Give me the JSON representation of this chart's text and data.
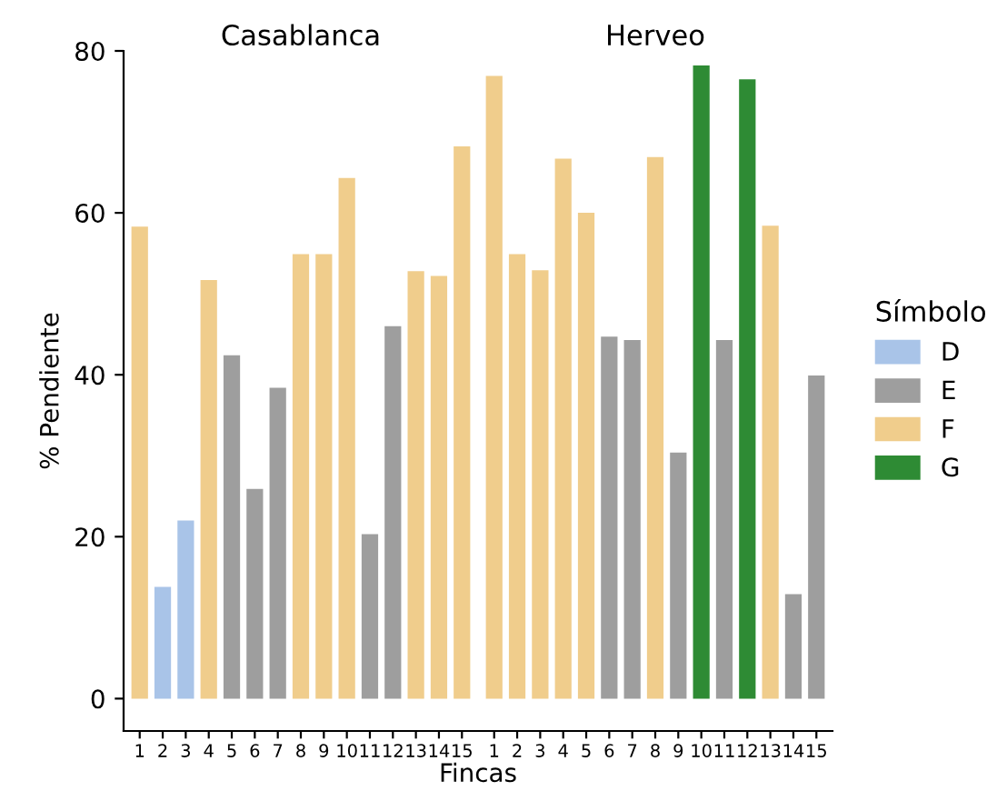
{
  "chart_data": [
    {
      "type": "bar",
      "title": "Casablanca",
      "ylabel": "% Pendiente",
      "xlabel": "Fincas",
      "categories": [
        "1",
        "2",
        "3",
        "4",
        "5",
        "6",
        "7",
        "8",
        "9",
        "10",
        "11",
        "12",
        "13",
        "14",
        "15"
      ],
      "series": [
        {
          "name": "D",
          "color": "#a9c4e8",
          "values": [
            null,
            13.8,
            22.0,
            null,
            null,
            null,
            null,
            null,
            null,
            null,
            null,
            null,
            null,
            null,
            null
          ]
        },
        {
          "name": "E",
          "color": "#9e9e9e",
          "values": [
            null,
            null,
            null,
            null,
            42.4,
            25.9,
            38.4,
            null,
            null,
            null,
            20.3,
            46.0,
            null,
            null,
            null
          ]
        },
        {
          "name": "F",
          "color": "#f0cd8c",
          "values": [
            58.3,
            null,
            null,
            51.7,
            null,
            null,
            null,
            54.9,
            54.9,
            64.3,
            null,
            null,
            52.8,
            52.2,
            68.2
          ]
        },
        {
          "name": "G",
          "color": "#2e8b34",
          "values": [
            null,
            null,
            null,
            null,
            null,
            null,
            null,
            null,
            null,
            null,
            null,
            null,
            null,
            null,
            null
          ]
        }
      ],
      "ylim": [
        -4,
        80
      ],
      "yticks": [
        0,
        20,
        40,
        60,
        80
      ],
      "grid": false,
      "legend": "right",
      "legend_title": "Símbolo"
    },
    {
      "type": "bar",
      "title": "Herveo",
      "categories": [
        "1",
        "2",
        "3",
        "4",
        "5",
        "6",
        "7",
        "8",
        "9",
        "10",
        "11",
        "12",
        "13",
        "14",
        "15"
      ],
      "series": [
        {
          "color": "#9e9e9e",
          "values": [
            null,
            null,
            null,
            null,
            null,
            44.7,
            44.3,
            null,
            30.4,
            null,
            44.3,
            null,
            null,
            12.9,
            39.9
          ]
        },
        {
          "color": "#f0cd8c",
          "values": [
            76.9,
            54.9,
            52.9,
            66.7,
            60.0,
            null,
            null,
            66.9,
            null,
            null,
            null,
            null,
            58.4,
            null,
            null
          ]
        },
        {
          "color": "#2e8b34",
          "values": [
            null,
            null,
            null,
            null,
            null,
            null,
            null,
            null,
            null,
            78.2,
            null,
            76.5,
            null,
            null,
            null
          ]
        }
      ],
      "ylim": [
        -4,
        80
      ],
      "tick_labels": "x",
      "grid": false,
      "legend": false
    }
  ]
}
